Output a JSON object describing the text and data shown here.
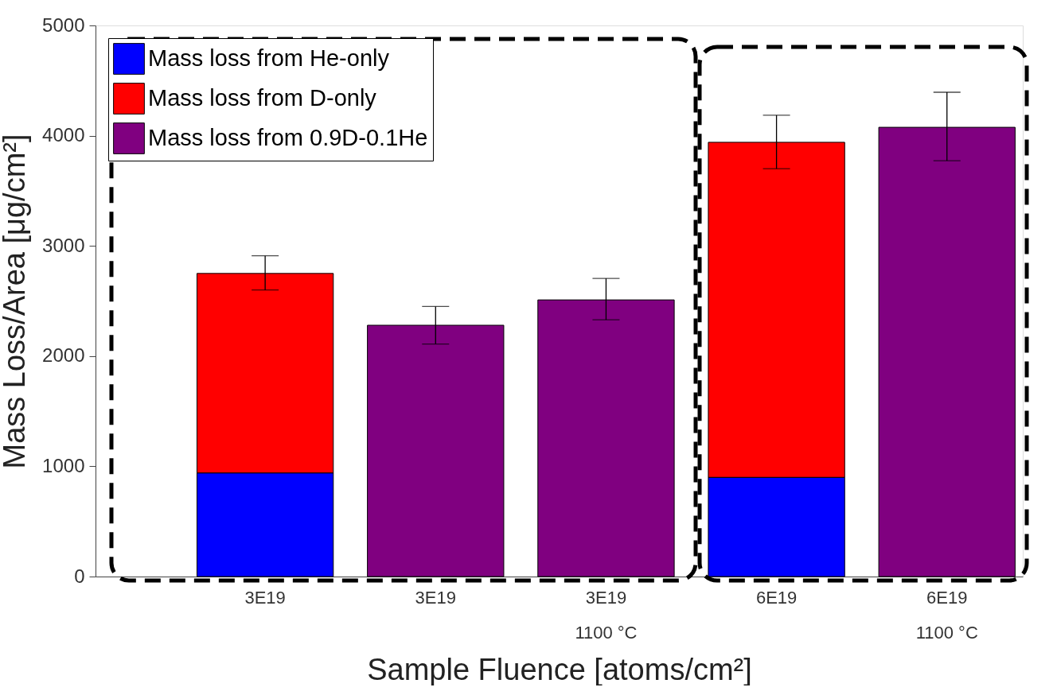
{
  "chart_data": {
    "type": "bar",
    "stacked": true,
    "categories": [
      "3E19",
      "3E19",
      "3E19\n1100 °C",
      "6E19",
      "6E19\n1100 °C"
    ],
    "series": [
      {
        "name": "Mass loss from He-only",
        "color": "#0000ff",
        "values": [
          940,
          null,
          null,
          900,
          null
        ]
      },
      {
        "name": "Mass loss from D-only",
        "color": "#ff0000",
        "values": [
          1810,
          null,
          null,
          3040,
          null
        ],
        "errors": [
          [
            2600,
            2910
          ],
          null,
          null,
          [
            3700,
            4185
          ],
          null
        ]
      },
      {
        "name": "Mass loss from 0.9D-0.1He",
        "color": "#800080",
        "values": [
          null,
          2280,
          2510,
          null,
          4076
        ],
        "errors": [
          null,
          [
            2110,
            2450
          ],
          [
            2330,
            2705
          ],
          null,
          [
            3773,
            4394
          ]
        ]
      }
    ],
    "xlabel": "Sample Fluence [atoms/cm²]",
    "ylabel": "Mass Loss/Area [μg/cm²]",
    "ylim": [
      0,
      5000
    ],
    "yticks": [
      0,
      1000,
      2000,
      3000,
      4000,
      5000
    ],
    "grid": false,
    "legend": "top left"
  }
}
